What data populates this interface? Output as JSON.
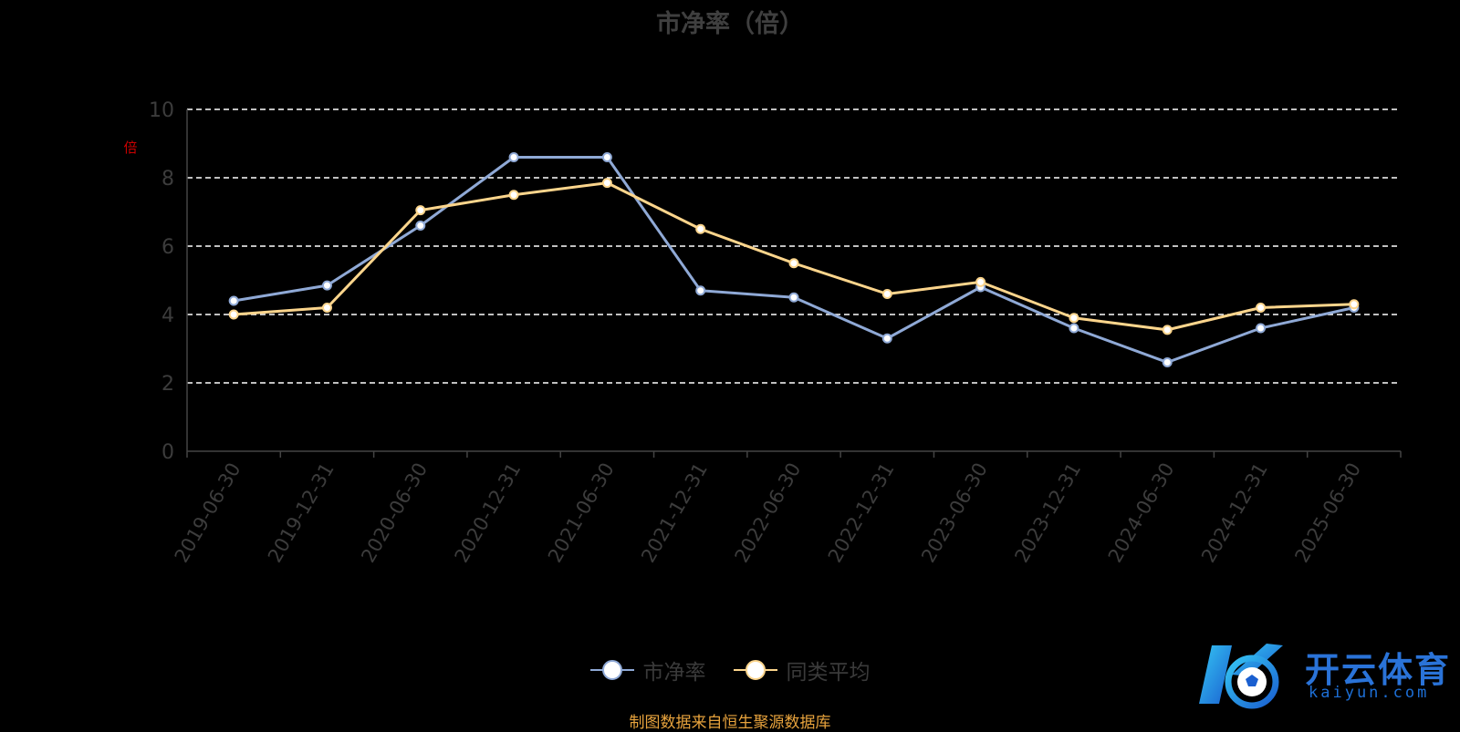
{
  "page": {
    "title": "市净率（倍）",
    "unit_mark": "倍",
    "source": "制图数据来自恒生聚源数据库",
    "logo": {
      "name": "开云体育",
      "domain": "kaiyun.com"
    }
  },
  "colors": {
    "background": "#000000",
    "series_pb": "#8fa9d6",
    "series_avg": "#fcd58c",
    "grid": "#ffffff",
    "axis_text": "#3c3c3c",
    "source": "#e8a33d",
    "unit_mark": "#cc0000"
  },
  "chart_data": {
    "type": "line",
    "title": "市净率（倍）",
    "ylabel": "倍",
    "ylim": [
      0,
      10
    ],
    "yticks": [
      0,
      2,
      4,
      6,
      8,
      10
    ],
    "grid": true,
    "grid_style": "dashed",
    "legend_position": "bottom",
    "x": [
      "2019-06-30",
      "2019-12-31",
      "2020-06-30",
      "2020-12-31",
      "2021-06-30",
      "2021-12-31",
      "2022-06-30",
      "2022-12-31",
      "2023-06-30",
      "2023-12-31",
      "2024-06-30",
      "2024-12-31",
      "2025-06-30"
    ],
    "series": [
      {
        "name": "市净率",
        "values": [
          4.4,
          4.85,
          6.6,
          8.6,
          8.6,
          4.7,
          4.5,
          3.3,
          4.8,
          3.6,
          2.6,
          3.6,
          4.2
        ]
      },
      {
        "name": "同类平均",
        "values": [
          4.0,
          4.2,
          7.05,
          7.5,
          7.85,
          6.5,
          5.5,
          4.6,
          4.95,
          3.9,
          3.55,
          4.2,
          4.3
        ]
      }
    ]
  }
}
